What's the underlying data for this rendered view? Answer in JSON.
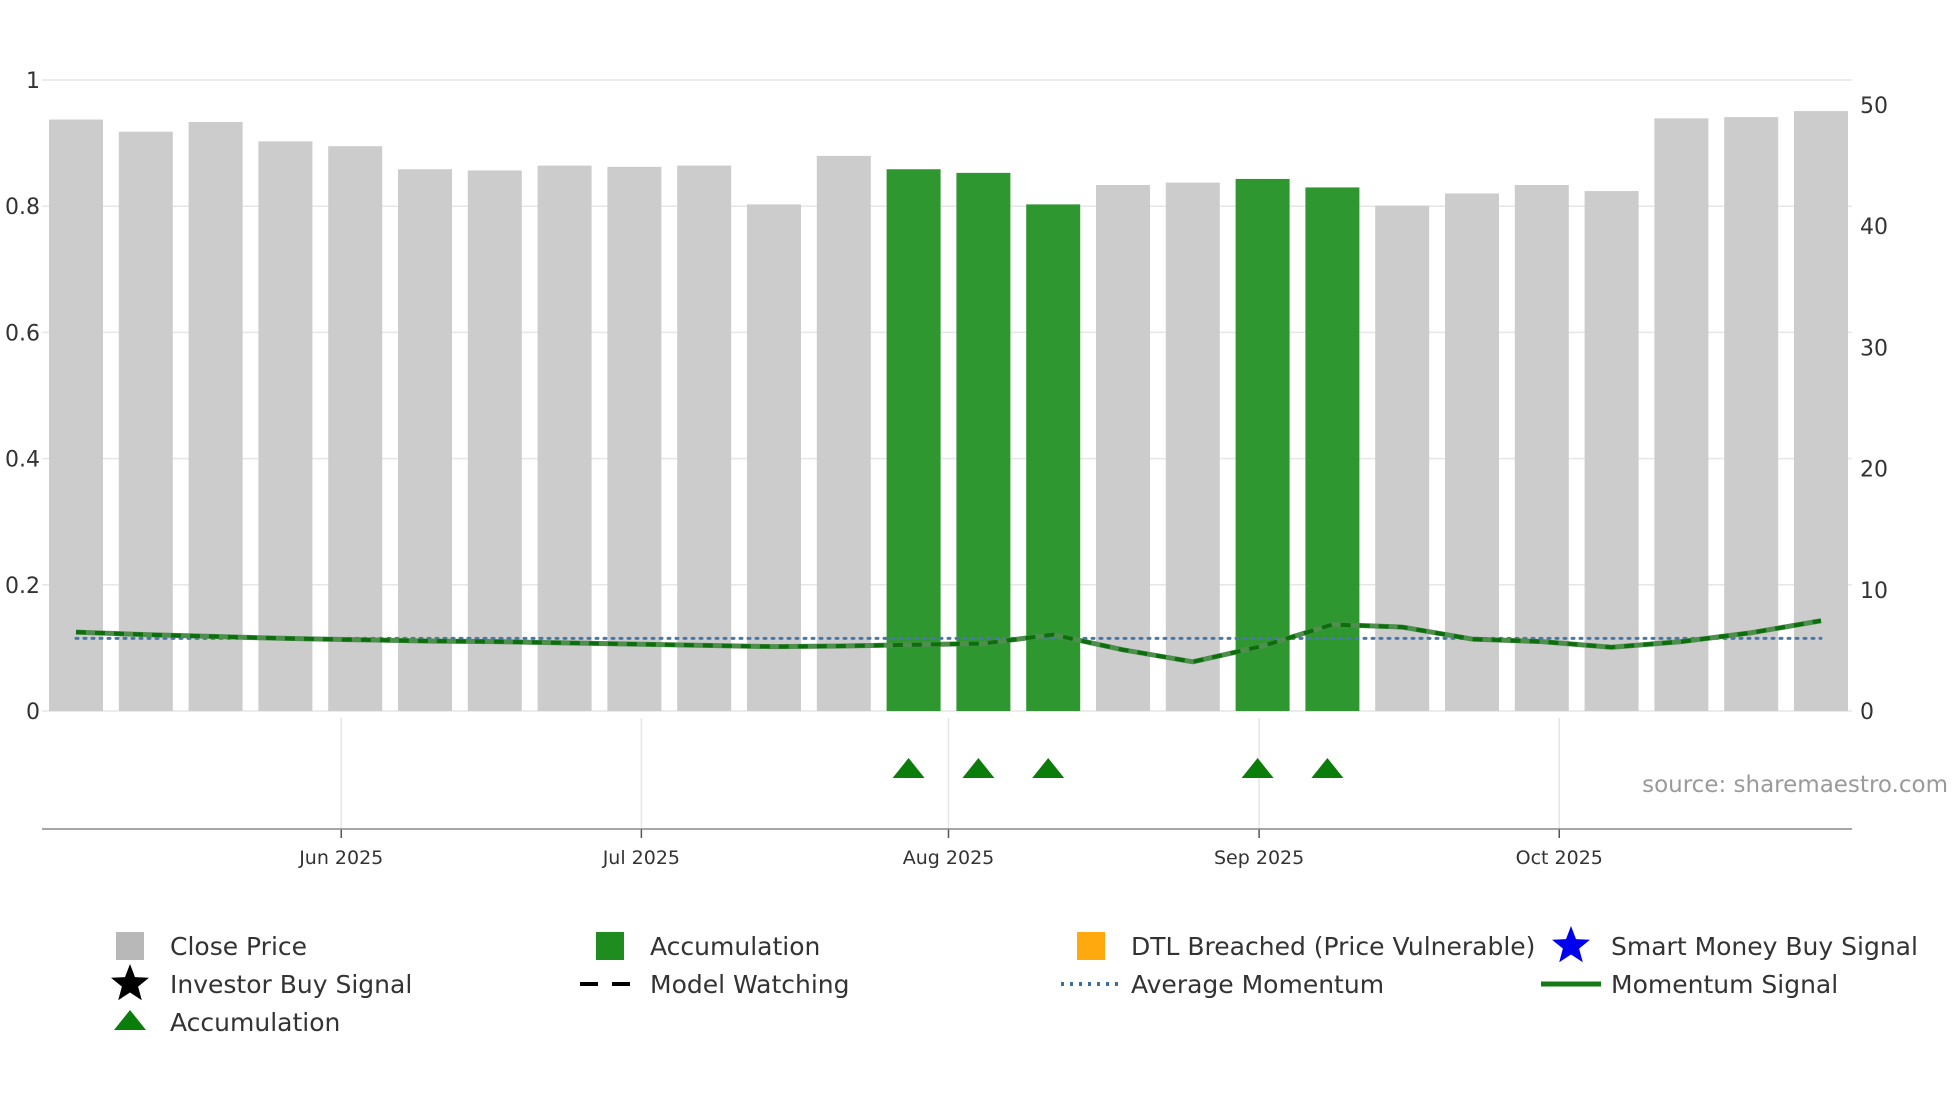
{
  "chart_data": {
    "type": "bar",
    "source": "source: sharemaestro.com",
    "left_axis": {
      "range": [
        0,
        1
      ],
      "ticks": [
        "0",
        "0.2",
        "0.4",
        "0.6",
        "0.8",
        "1"
      ]
    },
    "right_axis": {
      "range": [
        0,
        50
      ],
      "ticks": [
        "0",
        "10",
        "20",
        "30",
        "40",
        "50"
      ]
    },
    "x_ticks": [
      {
        "label": "Jun 2025",
        "index": 3.8
      },
      {
        "label": "Jul 2025",
        "index": 8.1
      },
      {
        "label": "Aug 2025",
        "index": 12.5
      },
      {
        "label": "Sep 2025",
        "index": 16.95
      },
      {
        "label": "Oct 2025",
        "index": 21.25
      }
    ],
    "close_price": [
      48.8,
      47.8,
      48.6,
      47.0,
      46.6,
      44.7,
      44.6,
      45.0,
      44.9,
      45.0,
      41.8,
      45.8,
      44.7,
      44.4,
      41.8,
      43.4,
      43.6,
      43.9,
      43.2,
      41.7,
      42.7,
      43.4,
      42.9,
      48.9,
      49.0,
      49.5
    ],
    "accumulation_index": [
      12,
      13,
      14,
      17,
      18
    ],
    "momentum": [
      0.125,
      0.121,
      0.118,
      0.115,
      0.113,
      0.111,
      0.11,
      0.108,
      0.106,
      0.104,
      0.102,
      0.103,
      0.105,
      0.107,
      0.121,
      0.097,
      0.078,
      0.103,
      0.137,
      0.133,
      0.114,
      0.11,
      0.101,
      0.11,
      0.124,
      0.143
    ],
    "average_momentum": 0.115,
    "accumulation_markers_index": [
      12,
      13,
      14,
      17,
      18
    ],
    "legend": [
      {
        "label": "Close Price",
        "symbol": "square",
        "color": "#b8b8b8"
      },
      {
        "label": "Accumulation",
        "symbol": "square",
        "color": "#1e8c1e"
      },
      {
        "label": "DTL Breached (Price Vulnerable)",
        "symbol": "square",
        "color": "#ffa90f"
      },
      {
        "label": "Smart Money Buy Signal",
        "symbol": "star",
        "color": "#0000ee"
      },
      {
        "label": "Investor Buy Signal",
        "symbol": "star",
        "color": "#000000"
      },
      {
        "label": "Model Watching",
        "symbol": "dash",
        "color": "#000000"
      },
      {
        "label": "Average Momentum",
        "symbol": "dot",
        "color": "#3a6ea5"
      },
      {
        "label": "Momentum Signal",
        "symbol": "line",
        "color": "#157a15"
      },
      {
        "label": "Accumulation",
        "symbol": "triangle",
        "color": "#0a7d0a"
      }
    ],
    "colors": {
      "bar": "#cccccc",
      "accumulation_bar": "#2f972f",
      "momentum": "#4e8f4e",
      "model_watching": "#0d6e0d",
      "average_momentum": "#4a78a8",
      "marker": "#0a7d0a",
      "grid": "#e6e6e6",
      "axis": "#888888"
    }
  }
}
